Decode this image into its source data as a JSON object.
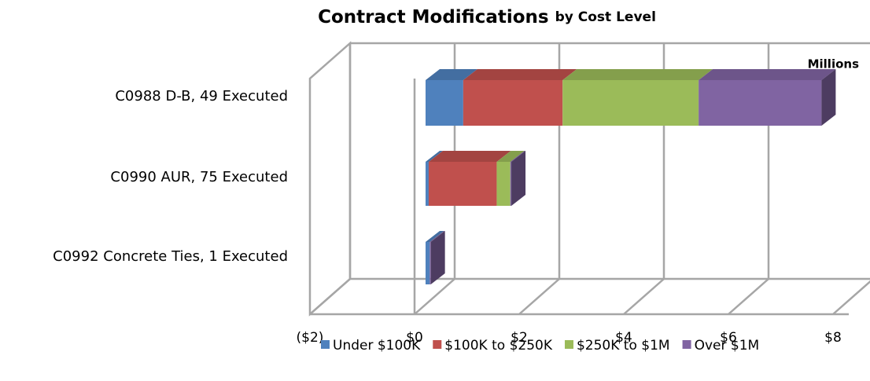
{
  "chart_data": {
    "type": "bar3d_stacked_horizontal",
    "title": "Contract Modifications",
    "title_suffix": "by Cost Level",
    "unit_label": "Millions",
    "categories": [
      "C0988 D-B, 49 Executed",
      "C0990 AUR, 75 Executed",
      "C0992  Concrete Ties, 1 Executed"
    ],
    "series": [
      {
        "name": "Under $100K",
        "color": "#4f81bd",
        "values": [
          0.72,
          0.06,
          0.08
        ]
      },
      {
        "name": "$100K to $250K",
        "color": "#c0504d",
        "values": [
          1.9,
          1.3,
          0
        ]
      },
      {
        "name": "$250K to $1M",
        "color": "#9bbb59",
        "values": [
          2.6,
          0.26,
          0
        ]
      },
      {
        "name": "Over $1M",
        "color": "#8064a2",
        "values": [
          2.35,
          0.02,
          0.02
        ]
      }
    ],
    "xlim": [
      -2,
      8
    ],
    "xticks": [
      {
        "value": -2,
        "label": "($2)"
      },
      {
        "value": 0,
        "label": "$0"
      },
      {
        "value": 2,
        "label": "$2"
      },
      {
        "value": 4,
        "label": "$4"
      },
      {
        "value": 6,
        "label": "$6"
      },
      {
        "value": 8,
        "label": "$8"
      }
    ],
    "negative_tick_color": "#ff0000",
    "grid": true
  }
}
